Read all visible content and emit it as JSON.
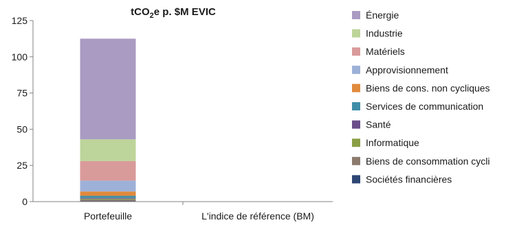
{
  "chart_data": {
    "type": "bar",
    "stacked": true,
    "title": {
      "main": "tCO",
      "sub": "2",
      "rest": "e p. $M EVIC"
    },
    "categories": [
      "Portefeuille",
      "L'indice de référence (BM)"
    ],
    "ylim": [
      0,
      125
    ],
    "yticks": [
      0,
      25,
      50,
      75,
      100,
      125
    ],
    "grid": false,
    "legend_position": "right",
    "series": [
      {
        "name": "Sociétés financières",
        "color": "#2e4674",
        "values": [
          0.3,
          0
        ]
      },
      {
        "name": "Biens de consommation cycli",
        "color": "#8c7b6d",
        "values": [
          1.2,
          0
        ]
      },
      {
        "name": "Informatique",
        "color": "#8a9f45",
        "values": [
          0.5,
          0
        ]
      },
      {
        "name": "Santé",
        "color": "#6b4e8a",
        "values": [
          0.5,
          0
        ]
      },
      {
        "name": "Services de communication",
        "color": "#3f8ea8",
        "values": [
          1.5,
          0
        ]
      },
      {
        "name": "Biens de cons. non cycliques",
        "color": "#e08a3c",
        "values": [
          3.0,
          0
        ]
      },
      {
        "name": "Approvisionnement",
        "color": "#9db1d8",
        "values": [
          7.5,
          0
        ]
      },
      {
        "name": "Matériels",
        "color": "#d99a9a",
        "values": [
          13.5,
          0
        ]
      },
      {
        "name": "Industrie",
        "color": "#bdd49a",
        "values": [
          15.0,
          0
        ]
      },
      {
        "name": "Énergie",
        "color": "#a99bc2",
        "values": [
          69.5,
          0
        ]
      }
    ]
  }
}
